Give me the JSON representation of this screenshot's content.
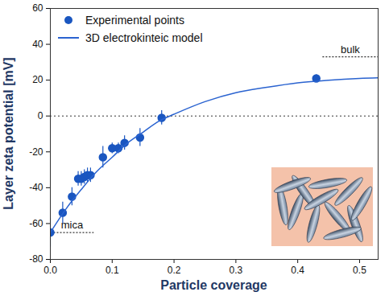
{
  "chart_data": {
    "type": "scatter",
    "x_label": "Particle coverage",
    "y_label": "Layer zeta potential [mV]",
    "xlim": [
      0,
      0.53
    ],
    "ylim": [
      -80,
      60
    ],
    "xticks": [
      {
        "value": 0,
        "label": "0.0"
      },
      {
        "value": 0.1,
        "label": "0.1"
      },
      {
        "value": 0.2,
        "label": "0.2"
      },
      {
        "value": 0.3,
        "label": "0.3"
      },
      {
        "value": 0.4,
        "label": "0.4"
      },
      {
        "value": 0.5,
        "label": "0.5"
      }
    ],
    "yticks": [
      -80,
      -60,
      -40,
      -20,
      0,
      20,
      40,
      60
    ],
    "grid": false,
    "legend": "top-left",
    "series": [
      {
        "name": "Experimental points",
        "type": "scatter",
        "color": "#1a56c0",
        "marker": "circle",
        "x": [
          0,
          0.02,
          0.035,
          0.045,
          0.05,
          0.055,
          0.06,
          0.065,
          0.085,
          0.1,
          0.11,
          0.12,
          0.145,
          0.18,
          0.43
        ],
        "values": [
          -65,
          -54,
          -45,
          -35,
          -35,
          -34,
          -33,
          -33,
          -23,
          -18,
          -18,
          -15,
          -12,
          -1,
          21
        ],
        "errors": [
          8,
          6,
          5,
          4,
          4,
          4,
          4,
          4,
          6,
          3,
          3,
          4,
          5,
          4,
          2
        ]
      },
      {
        "name": "3D electrokinteic model",
        "type": "line",
        "color": "#2a63d0",
        "line_style": "solid",
        "x": [
          0,
          0.025,
          0.05,
          0.075,
          0.1,
          0.125,
          0.15,
          0.175,
          0.2,
          0.25,
          0.3,
          0.35,
          0.4,
          0.45,
          0.5,
          0.53
        ],
        "values": [
          -65,
          -52,
          -41,
          -31,
          -23,
          -15,
          -9,
          -3,
          1,
          8,
          13,
          16,
          18.5,
          20,
          21,
          21.3
        ]
      }
    ],
    "reference_lines": [
      0
    ],
    "annotations": [
      {
        "text": "mica",
        "y": -65,
        "x": [
          0,
          0.07
        ]
      },
      {
        "text": "bulk",
        "y": 33,
        "x": [
          0.44,
          0.53
        ]
      }
    ]
  }
}
